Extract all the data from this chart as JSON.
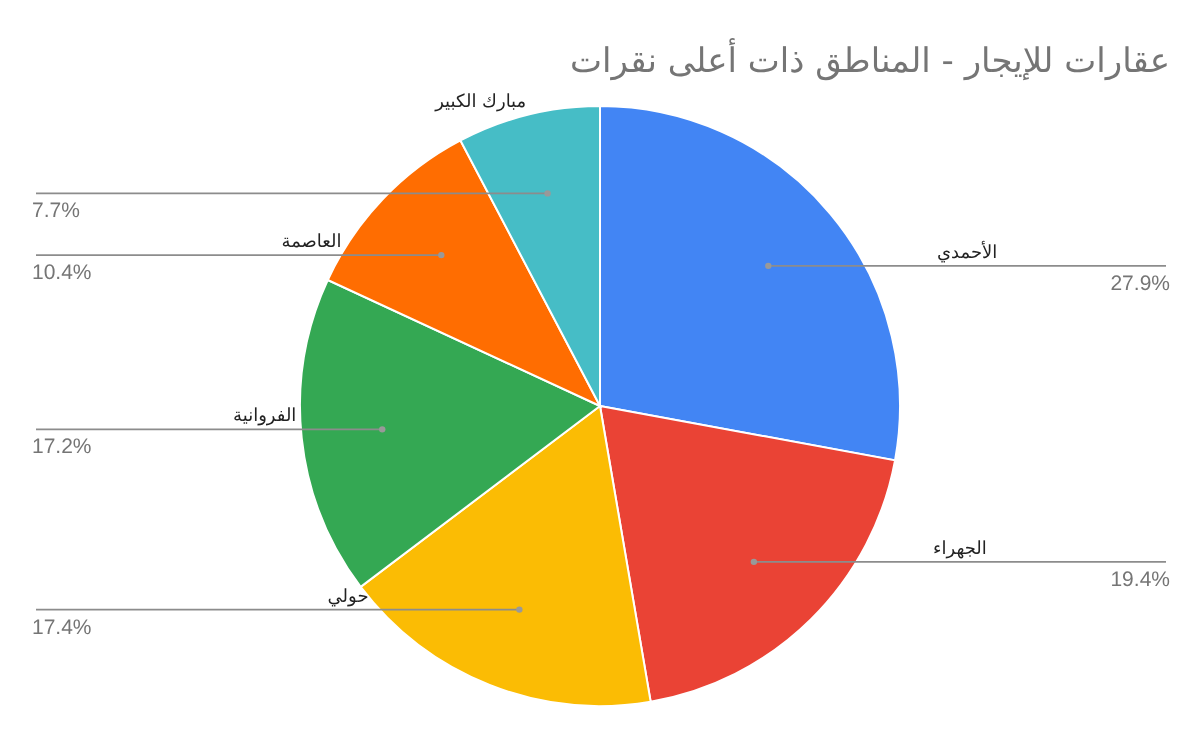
{
  "chart_data": {
    "type": "pie",
    "title": "عقارات للإيجار - المناطق ذات أعلى نقرات",
    "categories": [
      "الأحمدي",
      "الجهراء",
      "حولي",
      "الفروانية",
      "العاصمة",
      "مبارك الكبير"
    ],
    "values": [
      27.9,
      19.4,
      17.4,
      17.2,
      10.4,
      7.7
    ],
    "colors": [
      "#4285f4",
      "#ea4335",
      "#fbbc04",
      "#34a853",
      "#ff6d01",
      "#46bdc6"
    ],
    "value_labels": [
      "27.9%",
      "19.4%",
      "17.4%",
      "17.2%",
      "10.4%",
      "7.7%"
    ]
  }
}
